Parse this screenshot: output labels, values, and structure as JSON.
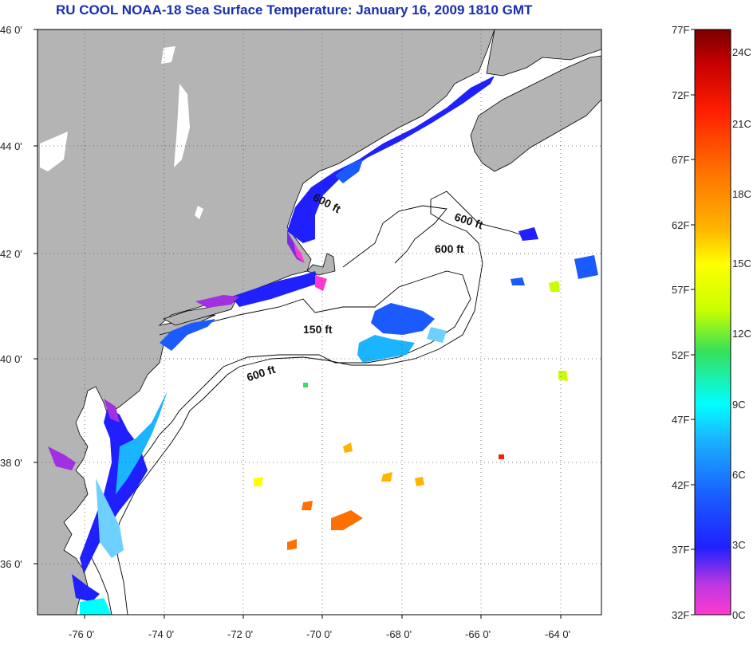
{
  "header": {
    "title": "RU COOL  NOAA-18  Sea Surface Temperature:  January 16, 2009 1810 GMT"
  },
  "map": {
    "lat_labels": [
      "46 0'",
      "44 0'",
      "42 0'",
      "40 0'",
      "38 0'",
      "36 0'"
    ],
    "lon_labels": [
      "-76 0'",
      "-74 0'",
      "-72 0'",
      "-70 0'",
      "-68 0'",
      "-66 0'",
      "-64 0'"
    ],
    "contour_labels": [
      "600 ft",
      "600 ft",
      "600 ft",
      "150 ft",
      "600 ft"
    ],
    "colors": {
      "land": "#b4b4b4",
      "ocean": "#ffffff",
      "coast": "#000000"
    }
  },
  "colorbar": {
    "fahrenheit": [
      "77F",
      "72F",
      "67F",
      "62F",
      "57F",
      "52F",
      "47F",
      "42F",
      "37F",
      "32F"
    ],
    "celsius": [
      "24C",
      "21C",
      "18C",
      "15C",
      "12C",
      "9C",
      "6C",
      "3C",
      "0C"
    ],
    "stops": [
      "#ff3ad0",
      "#a030e0",
      "#2020ff",
      "#1a5aff",
      "#1ab4ff",
      "#00ffff",
      "#36e05a",
      "#c8ff00",
      "#ffff00",
      "#ffb400",
      "#ff7000",
      "#ff1e00",
      "#c80000",
      "#7a0000"
    ]
  }
}
